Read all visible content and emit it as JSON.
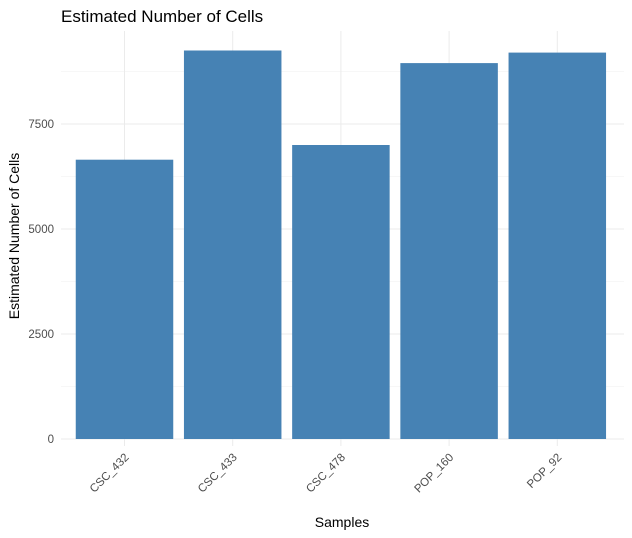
{
  "chart_data": {
    "type": "bar",
    "title": "Estimated Number of Cells",
    "xlabel": "Samples",
    "ylabel": "Estimated Number of Cells",
    "categories": [
      "CSC_432",
      "CSC_433",
      "CSC_478",
      "POP_160",
      "POP_92"
    ],
    "values": [
      6650,
      9250,
      7000,
      8950,
      9200
    ],
    "yticks": [
      0,
      2500,
      5000,
      7500
    ],
    "ylim": [
      0,
      9650
    ],
    "grid": true,
    "legend": "none",
    "bar_color": "#4682b4",
    "x_tick_rotation": 45
  }
}
